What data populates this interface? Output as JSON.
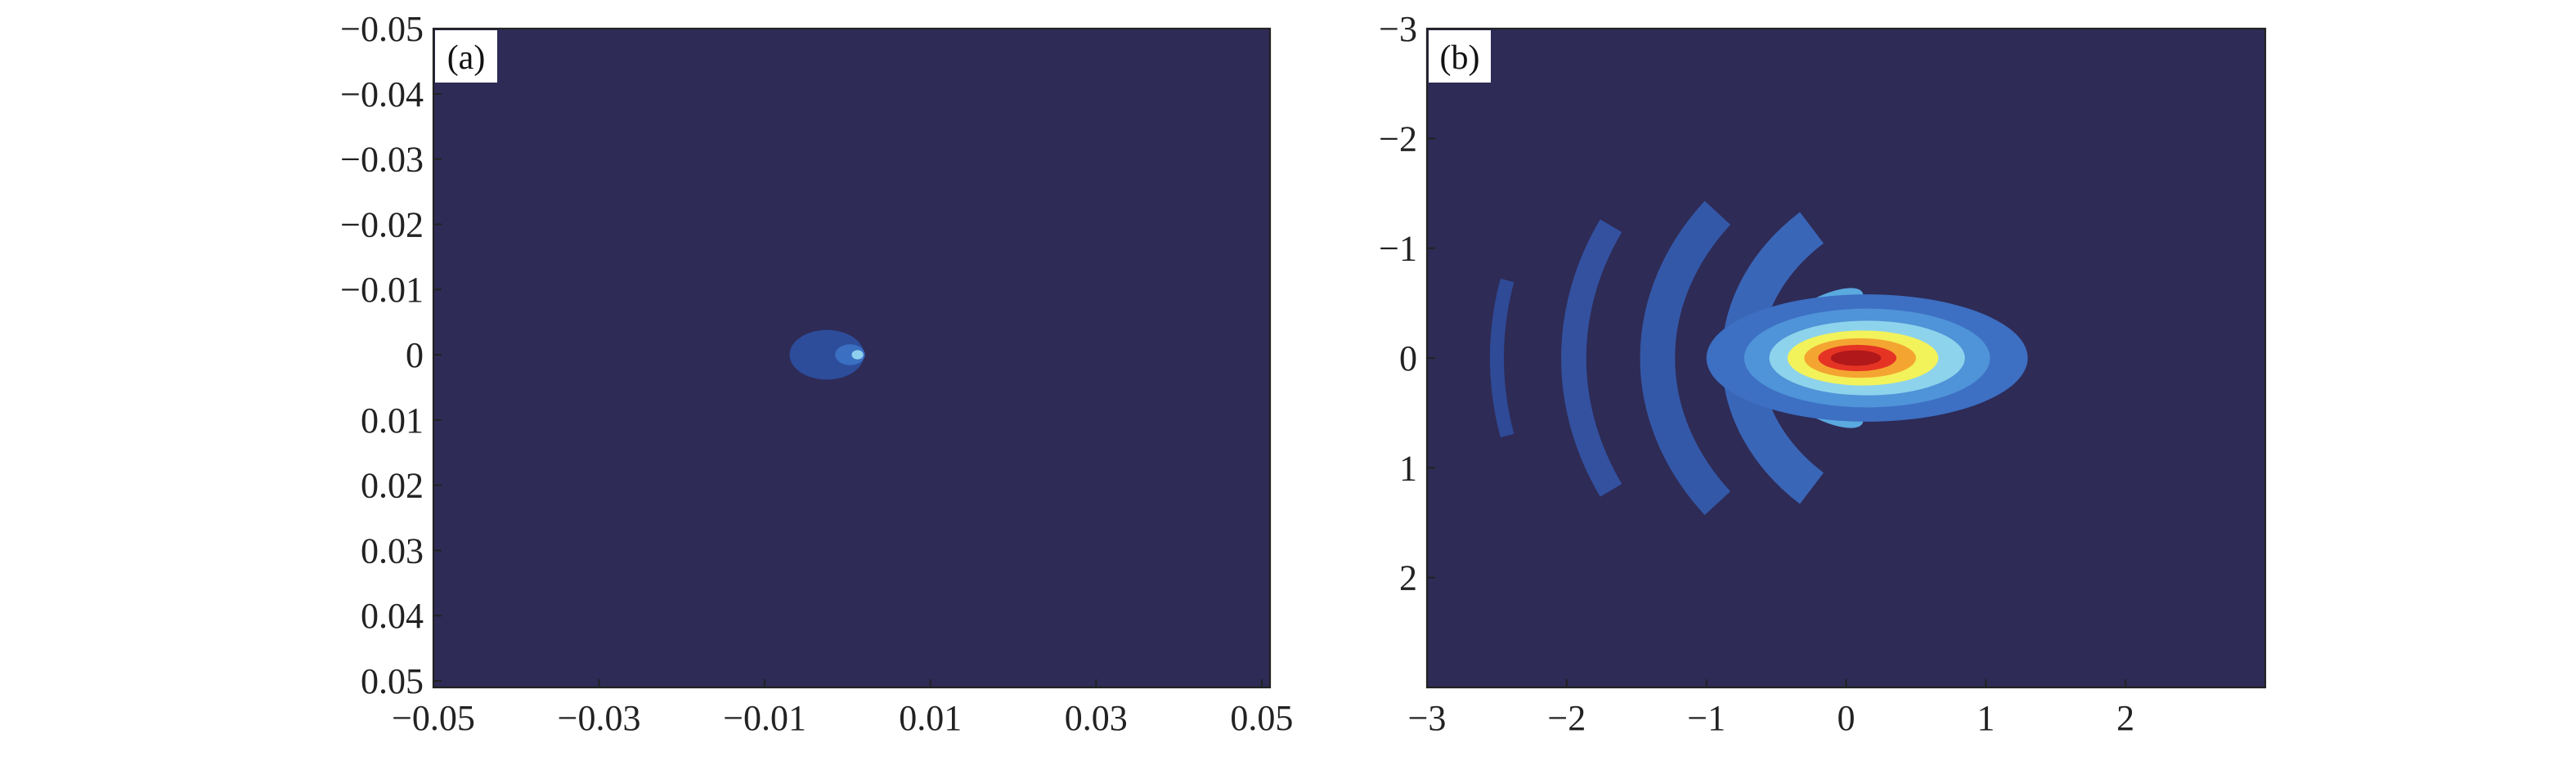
{
  "chart_data": [
    {
      "type": "heatmap",
      "panel_label": "(a)",
      "xlim": [
        -0.05,
        0.051
      ],
      "ylim": [
        -0.05,
        0.051
      ],
      "y_reversed": true,
      "x_ticks": [
        -0.05,
        -0.03,
        -0.01,
        0.01,
        0.03,
        0.05
      ],
      "x_tick_labels": [
        "−0.05",
        "−0.03",
        "−0.01",
        "0.01",
        "0.03",
        "0.05"
      ],
      "y_ticks": [
        -0.05,
        -0.04,
        -0.03,
        -0.02,
        -0.01,
        0,
        0.01,
        0.02,
        0.03,
        0.04,
        0.05
      ],
      "y_tick_labels": [
        "−0.05",
        "−0.04",
        "−0.03",
        "−0.02",
        "−0.01",
        "0",
        "0.01",
        "0.02",
        "0.03",
        "0.04",
        "0.05"
      ],
      "background_color": "#2e2b56",
      "features": [
        {
          "kind": "blob",
          "cx": -0.0025,
          "cy": 0.0,
          "rx": 0.0045,
          "ry": 0.0038,
          "color": "#2d4d9b"
        },
        {
          "kind": "blob",
          "cx": 0.0003,
          "cy": 0.0,
          "rx": 0.0018,
          "ry": 0.0016,
          "color": "#3b6fc2"
        },
        {
          "kind": "blob",
          "cx": 0.0012,
          "cy": 0.0,
          "rx": 0.0007,
          "ry": 0.0007,
          "color": "#8fd0ee"
        }
      ]
    },
    {
      "type": "heatmap",
      "panel_label": "(b)",
      "xlim": [
        -3,
        3
      ],
      "ylim": [
        -3,
        3
      ],
      "y_reversed": true,
      "x_ticks": [
        -3,
        -2,
        -1,
        0,
        1,
        2
      ],
      "x_tick_labels": [
        "−3",
        "−2",
        "−1",
        "0",
        "1",
        "2"
      ],
      "y_ticks": [
        -3,
        -2,
        -1,
        0,
        1,
        2
      ],
      "y_tick_labels": [
        "−3",
        "−2",
        "−1",
        "0",
        "1",
        "2"
      ],
      "background_color": "#2e2b56",
      "features": [
        {
          "kind": "ring",
          "cx": 0.9,
          "cy": 0.0,
          "r": 3.4,
          "width": 0.1,
          "angle": 12,
          "color": "#2f4a96"
        },
        {
          "kind": "ring",
          "cx": 0.9,
          "cy": 0.0,
          "r": 2.85,
          "width": 0.18,
          "angle": 25,
          "color": "#33519f"
        },
        {
          "kind": "ring",
          "cx": 0.9,
          "cy": 0.0,
          "r": 2.25,
          "width": 0.25,
          "angle": 36,
          "color": "#3458a8"
        },
        {
          "kind": "ring",
          "cx": 0.9,
          "cy": 0.0,
          "r": 1.65,
          "width": 0.28,
          "angle": 46,
          "color": "#3a66b8"
        },
        {
          "kind": "lobe",
          "cx": -0.2,
          "cy": -0.38,
          "rx": 0.36,
          "ry": 0.16,
          "angle": -28,
          "color": "#5aa9df"
        },
        {
          "kind": "lobe",
          "cx": -0.2,
          "cy": 0.38,
          "rx": 0.36,
          "ry": 0.16,
          "angle": 28,
          "color": "#5aa9df"
        },
        {
          "kind": "lobe",
          "cx": -0.18,
          "cy": -0.38,
          "rx": 0.2,
          "ry": 0.08,
          "angle": -28,
          "color": "#bfe6f4"
        },
        {
          "kind": "lobe",
          "cx": -0.18,
          "cy": 0.38,
          "rx": 0.2,
          "ry": 0.08,
          "angle": 28,
          "color": "#bfe6f4"
        },
        {
          "kind": "blob",
          "cx": 0.15,
          "cy": 0.0,
          "rx": 1.15,
          "ry": 0.58,
          "color": "#3d6fc3"
        },
        {
          "kind": "blob",
          "cx": 0.15,
          "cy": 0.0,
          "rx": 0.88,
          "ry": 0.45,
          "color": "#4f93d8"
        },
        {
          "kind": "blob",
          "cx": 0.15,
          "cy": 0.0,
          "rx": 0.7,
          "ry": 0.34,
          "color": "#8ed3ec"
        },
        {
          "kind": "blob",
          "cx": 0.12,
          "cy": 0.0,
          "rx": 0.54,
          "ry": 0.25,
          "color": "#f2f25a"
        },
        {
          "kind": "blob",
          "cx": 0.1,
          "cy": 0.0,
          "rx": 0.4,
          "ry": 0.18,
          "color": "#f4a531"
        },
        {
          "kind": "blob",
          "cx": 0.08,
          "cy": 0.0,
          "rx": 0.28,
          "ry": 0.12,
          "color": "#e53324"
        },
        {
          "kind": "blob",
          "cx": 0.07,
          "cy": 0.0,
          "rx": 0.18,
          "ry": 0.07,
          "color": "#b0181a"
        }
      ]
    }
  ]
}
